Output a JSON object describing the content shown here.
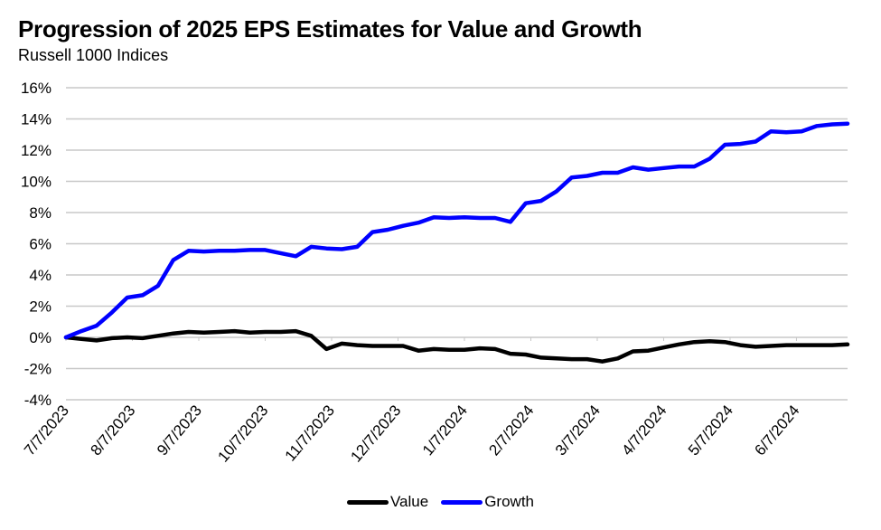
{
  "chart_data": {
    "type": "line",
    "title": "Progression of 2025 EPS Estimates for Value and Growth",
    "subtitle": "Russell 1000 Indices",
    "xlabel": "",
    "ylabel": "",
    "ylim": [
      -4,
      16
    ],
    "y_ticks": [
      16,
      14,
      12,
      10,
      8,
      6,
      4,
      2,
      0,
      -2,
      -4
    ],
    "y_tick_labels": [
      "16%",
      "14%",
      "12%",
      "10%",
      "8%",
      "6%",
      "4%",
      "2%",
      "0%",
      "-2%",
      "-4%"
    ],
    "x_tick_labels": [
      "7/7/2023",
      "8/7/2023",
      "9/7/2023",
      "10/7/2023",
      "11/7/2023",
      "12/7/2023",
      "1/7/2024",
      "2/7/2024",
      "3/7/2024",
      "4/7/2024",
      "5/7/2024",
      "6/7/2024"
    ],
    "grid": true,
    "legend_position": "bottom",
    "series": [
      {
        "name": "Value",
        "color": "#000000",
        "values": [
          0.0,
          -0.1,
          -0.2,
          -0.05,
          0.0,
          -0.05,
          0.1,
          0.25,
          0.35,
          0.3,
          0.35,
          0.4,
          0.3,
          0.35,
          0.35,
          0.4,
          0.1,
          -0.75,
          -0.4,
          -0.5,
          -0.55,
          -0.55,
          -0.55,
          -0.85,
          -0.75,
          -0.8,
          -0.8,
          -0.7,
          -0.75,
          -1.05,
          -1.1,
          -1.3,
          -1.35,
          -1.4,
          -1.4,
          -1.55,
          -1.35,
          -0.9,
          -0.85,
          -0.65,
          -0.45,
          -0.3,
          -0.25,
          -0.3,
          -0.5,
          -0.6,
          -0.55,
          -0.5,
          -0.5,
          -0.5,
          -0.5,
          -0.45
        ]
      },
      {
        "name": "Growth",
        "color": "#0000FF",
        "values": [
          0.0,
          0.4,
          0.75,
          1.6,
          2.55,
          2.7,
          3.3,
          4.95,
          5.55,
          5.5,
          5.55,
          5.55,
          5.6,
          5.6,
          5.4,
          5.2,
          5.8,
          5.7,
          5.65,
          5.8,
          6.75,
          6.9,
          7.15,
          7.35,
          7.7,
          7.65,
          7.7,
          7.65,
          7.65,
          7.4,
          8.6,
          8.75,
          9.35,
          10.25,
          10.35,
          10.55,
          10.55,
          10.9,
          10.75,
          10.85,
          10.95,
          10.95,
          11.45,
          12.35,
          12.4,
          12.55,
          13.2,
          13.15,
          13.2,
          13.55,
          13.65,
          13.7
        ]
      }
    ]
  }
}
